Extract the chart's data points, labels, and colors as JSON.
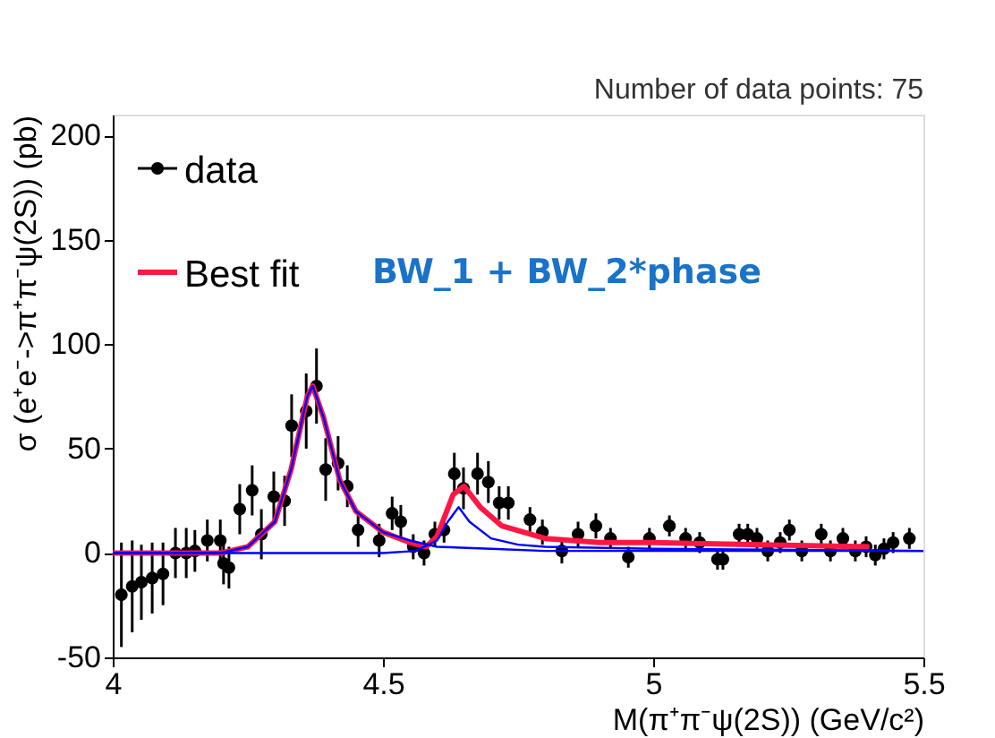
{
  "chart_data": {
    "type": "scatter",
    "xlabel": "M(π⁺π⁻ψ(2S)) (GeV/c²)",
    "ylabel": "σ (e⁺e⁻->π⁺π⁻ψ(2S)) (pb)",
    "xlim": [
      4,
      5.5
    ],
    "ylim": [
      -50,
      210
    ],
    "xticks": [
      4,
      4.5,
      5,
      5.5
    ],
    "yticks": [
      -50,
      0,
      50,
      100,
      150,
      200
    ],
    "grid": false,
    "legend": "top left",
    "annotations": [
      "Number of data points: 75",
      "BW_1 + BW_2*phase"
    ],
    "series": [
      {
        "name": "data",
        "marker": "circle",
        "color": "#000000",
        "x": [
          4.016,
          4.036,
          4.053,
          4.073,
          4.093,
          4.116,
          4.136,
          4.152,
          4.175,
          4.199,
          4.205,
          4.215,
          4.235,
          4.258,
          4.275,
          4.298,
          4.318,
          4.331,
          4.358,
          4.377,
          4.394,
          4.417,
          4.434,
          4.454,
          4.493,
          4.517,
          4.533,
          4.556,
          4.576,
          4.596,
          4.613,
          4.632,
          4.649,
          4.675,
          4.695,
          4.715,
          4.732,
          4.772,
          4.795,
          4.831,
          4.861,
          4.894,
          4.921,
          4.954,
          4.993,
          5.03,
          5.06,
          5.086,
          5.119,
          5.129,
          5.159,
          5.175,
          5.192,
          5.212,
          5.235,
          5.252,
          5.275,
          5.311,
          5.328,
          5.351,
          5.374,
          5.394,
          5.411,
          5.427,
          5.444,
          5.474
        ],
        "values": [
          -20,
          -16,
          -14,
          -12,
          -10,
          0,
          0,
          1,
          6,
          6,
          -5,
          -7,
          21,
          30,
          9,
          27,
          25,
          61,
          68,
          80,
          40,
          43,
          32,
          11,
          6,
          19,
          15,
          3,
          0,
          9,
          11,
          38,
          31,
          38,
          34,
          24,
          24,
          16,
          10,
          1,
          9,
          13,
          7,
          -2,
          7,
          13,
          7,
          5,
          -3,
          -3,
          9,
          9,
          7,
          1,
          5,
          11,
          1,
          9,
          1,
          7,
          1,
          3,
          -1,
          2,
          5,
          7
        ],
        "errors": [
          25,
          22,
          18,
          17,
          15,
          12,
          12,
          10,
          10,
          10,
          10,
          10,
          12,
          12,
          12,
          12,
          12,
          15,
          18,
          18,
          15,
          13,
          10,
          8,
          8,
          8,
          8,
          6,
          6,
          6,
          6,
          10,
          10,
          10,
          10,
          8,
          8,
          6,
          6,
          6,
          6,
          6,
          5,
          5,
          5,
          5,
          5,
          5,
          5,
          5,
          5,
          5,
          5,
          5,
          5,
          5,
          5,
          5,
          5,
          5,
          5,
          5,
          5,
          5,
          5,
          5
        ]
      },
      {
        "name": "Best fit",
        "type": "line",
        "color": "#ff1744",
        "x": [
          4.0,
          4.2,
          4.25,
          4.3,
          4.33,
          4.36,
          4.37,
          4.39,
          4.42,
          4.45,
          4.5,
          4.55,
          4.58,
          4.6,
          4.63,
          4.65,
          4.68,
          4.72,
          4.8,
          4.9,
          5.0,
          5.2,
          5.4
        ],
        "values": [
          0,
          0,
          3,
          15,
          40,
          75,
          80,
          65,
          35,
          20,
          10,
          5,
          3,
          8,
          28,
          32,
          22,
          13,
          7,
          5,
          5,
          4,
          3
        ]
      },
      {
        "type": "line",
        "color": "#0000ff",
        "x": [
          4.0,
          4.2,
          4.25,
          4.3,
          4.33,
          4.36,
          4.37,
          4.39,
          4.42,
          4.45,
          4.5,
          4.55,
          4.6,
          4.7,
          4.8,
          5.0,
          5.2,
          5.5
        ],
        "values": [
          0,
          0,
          3,
          15,
          40,
          75,
          80,
          65,
          35,
          20,
          10,
          6,
          3,
          2,
          1,
          1,
          1,
          1
        ]
      },
      {
        "type": "line",
        "color": "#0000ff",
        "x": [
          4.0,
          4.5,
          4.56,
          4.6,
          4.62,
          4.64,
          4.66,
          4.7,
          4.75,
          4.8,
          5.0,
          5.5
        ],
        "values": [
          0,
          0,
          1,
          6,
          15,
          22,
          15,
          7,
          4,
          3,
          2,
          1
        ]
      }
    ]
  }
}
